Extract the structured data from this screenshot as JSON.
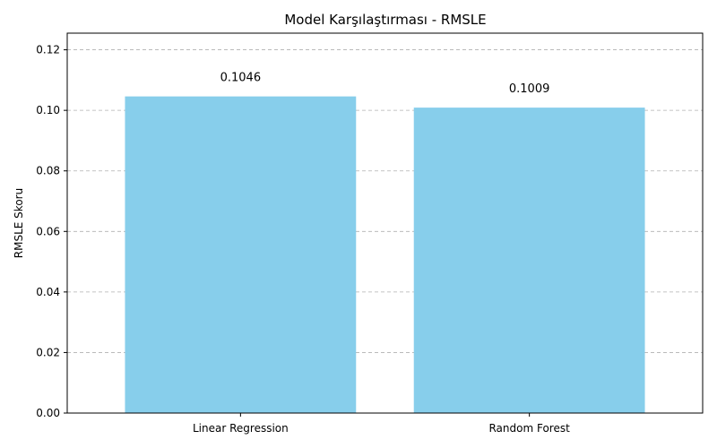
{
  "chart_data": {
    "type": "bar",
    "title": "Model Karşılaştırması - RMSLE",
    "xlabel": "",
    "ylabel": "RMSLE Skoru",
    "categories": [
      "Linear Regression",
      "Random Forest"
    ],
    "values": [
      0.1046,
      0.1009
    ],
    "data_labels": [
      "0.1046",
      "0.1009"
    ],
    "ylim": [
      0,
      0.1255
    ],
    "yticks": [
      0.0,
      0.02,
      0.04,
      0.06,
      0.08,
      0.1,
      0.12
    ],
    "ytick_labels": [
      "0.00",
      "0.02",
      "0.04",
      "0.06",
      "0.08",
      "0.10",
      "0.12"
    ],
    "grid": "y-dashed",
    "bar_color": "#87CEEB"
  }
}
